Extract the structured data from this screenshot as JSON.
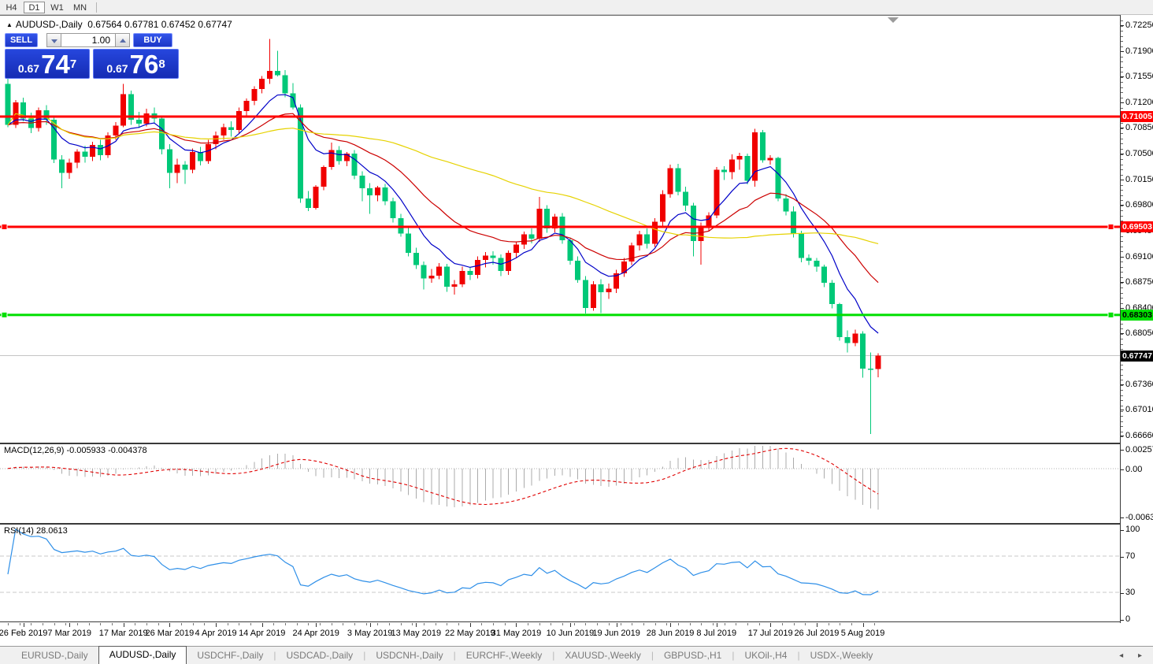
{
  "toolbar": {
    "timeframes": [
      {
        "label": "H4",
        "active": false
      },
      {
        "label": "D1",
        "active": true
      },
      {
        "label": "W1",
        "active": false
      },
      {
        "label": "MN",
        "active": false
      }
    ]
  },
  "chart": {
    "symbol_period": "AUDUSD-,Daily",
    "ohlc": "0.67564 0.67781 0.67452 0.67747",
    "collapse_icon": "▲"
  },
  "one_click": {
    "sell_label": "SELL",
    "buy_label": "BUY",
    "volume": "1.00",
    "sell_price": {
      "prefix": "0.67",
      "big": "74",
      "sup": "7"
    },
    "buy_price": {
      "prefix": "0.67",
      "big": "76",
      "sup": "8"
    }
  },
  "price_axis": {
    "labels": [
      "0.72250",
      "0.71900",
      "0.71550",
      "0.71200",
      "0.70850",
      "0.70500",
      "0.70150",
      "0.69800",
      "0.69450",
      "0.69100",
      "0.68750",
      "0.68400",
      "0.68050",
      "0.67710",
      "0.67360",
      "0.67010",
      "0.66660"
    ]
  },
  "levels": [
    {
      "price": 0.71005,
      "label": "0.71005",
      "type": "resistance",
      "color": "#FF0000",
      "text_color": "#FFFFFF",
      "handles": false
    },
    {
      "price": 0.69503,
      "label": "0.69503",
      "type": "resistance",
      "color": "#FF0000",
      "text_color": "#FFFFFF",
      "handles": true
    },
    {
      "price": 0.68303,
      "label": "0.68303",
      "type": "support",
      "color": "#00DF00",
      "text_color": "#000000",
      "handles": true
    }
  ],
  "current_price": {
    "value": 0.67747,
    "label": "0.67747",
    "tag_bg": "#000000",
    "tag_text": "#FFFFFF"
  },
  "indicators": {
    "macd": {
      "label": "MACD(12,26,9) -0.005933 -0.004378",
      "main_value": "-0.005933",
      "signal_value": "-0.004378",
      "axis_labels": [
        "0.002574",
        "0.00",
        "-0.006338"
      ],
      "fast": 12,
      "slow": 26,
      "signal": 9,
      "bar_color": "#ABABAB",
      "signal_color": "#E00000"
    },
    "rsi": {
      "label": "RSI(14) 28.0613",
      "value": "28.0613",
      "axis_labels": [
        "100",
        "70",
        "30",
        "0"
      ],
      "period": 14,
      "levels": [
        70,
        30
      ],
      "line_color": "#2E8FE8"
    }
  },
  "date_axis": {
    "ticks": [
      {
        "label": "26 Feb 2019",
        "i": 2
      },
      {
        "label": "7 Mar 2019",
        "i": 8
      },
      {
        "label": "17 Mar 2019",
        "i": 15
      },
      {
        "label": "26 Mar 2019",
        "i": 21
      },
      {
        "label": "4 Apr 2019",
        "i": 27
      },
      {
        "label": "14 Apr 2019",
        "i": 33
      },
      {
        "label": "24 Apr 2019",
        "i": 40
      },
      {
        "label": "3 May 2019",
        "i": 47
      },
      {
        "label": "13 May 2019",
        "i": 53
      },
      {
        "label": "22 May 2019",
        "i": 60
      },
      {
        "label": "31 May 2019",
        "i": 66
      },
      {
        "label": "10 Jun 2019",
        "i": 73
      },
      {
        "label": "19 Jun 2019",
        "i": 79
      },
      {
        "label": "28 Jun 2019",
        "i": 86
      },
      {
        "label": "8 Jul 2019",
        "i": 92
      },
      {
        "label": "17 Jul 2019",
        "i": 99
      },
      {
        "label": "26 Jul 2019",
        "i": 105
      },
      {
        "label": "5 Aug 2019",
        "i": 111
      }
    ]
  },
  "tabs": [
    {
      "label": "EURUSD-,Daily",
      "active": false
    },
    {
      "label": "AUDUSD-,Daily",
      "active": true
    },
    {
      "label": "USDCHF-,Daily",
      "active": false
    },
    {
      "label": "USDCAD-,Daily",
      "active": false
    },
    {
      "label": "USDCNH-,Daily",
      "active": false
    },
    {
      "label": "EURCHF-,Weekly",
      "active": false
    },
    {
      "label": "XAUUSD-,Weekly",
      "active": false
    },
    {
      "label": "GBPUSD-,H1",
      "active": false
    },
    {
      "label": "UKOil-,H4",
      "active": false
    },
    {
      "label": "USDX-,Weekly",
      "active": false
    }
  ],
  "tab_scroll": {
    "left_icon": "◂",
    "right_icon": "▸"
  },
  "chart_data": {
    "type": "candlestick",
    "symbol": "AUDUSD-",
    "timeframe": "Daily",
    "bull_color": "#F00000",
    "bear_color": "#00C878",
    "price_line_color": "#C4C4C4",
    "moving_averages": [
      {
        "kind": "ema",
        "period": 8,
        "color": "#0000C8"
      },
      {
        "kind": "ema",
        "period": 21,
        "color": "#CC0000"
      },
      {
        "kind": "sma",
        "period": 50,
        "color": "#E6D200"
      }
    ],
    "candles": [
      [
        0.7145,
        0.7157,
        0.7086,
        0.7089
      ],
      [
        0.7089,
        0.7123,
        0.7085,
        0.712
      ],
      [
        0.712,
        0.7126,
        0.7094,
        0.7098
      ],
      [
        0.7098,
        0.7106,
        0.7078,
        0.7085
      ],
      [
        0.7085,
        0.7113,
        0.708,
        0.7109
      ],
      [
        0.7109,
        0.7116,
        0.7089,
        0.7096
      ],
      [
        0.7096,
        0.7099,
        0.7037,
        0.7042
      ],
      [
        0.7042,
        0.7048,
        0.7003,
        0.7024
      ],
      [
        0.7024,
        0.7043,
        0.7016,
        0.7038
      ],
      [
        0.7038,
        0.7056,
        0.703,
        0.7053
      ],
      [
        0.7053,
        0.7061,
        0.7038,
        0.7046
      ],
      [
        0.7046,
        0.7066,
        0.704,
        0.7062
      ],
      [
        0.7062,
        0.7069,
        0.7041,
        0.7048
      ],
      [
        0.7048,
        0.7079,
        0.7044,
        0.7075
      ],
      [
        0.7075,
        0.7093,
        0.7069,
        0.7088
      ],
      [
        0.7088,
        0.7145,
        0.7086,
        0.7131
      ],
      [
        0.7131,
        0.7136,
        0.7089,
        0.7096
      ],
      [
        0.7096,
        0.7107,
        0.7085,
        0.7091
      ],
      [
        0.7091,
        0.7111,
        0.7087,
        0.7105
      ],
      [
        0.7105,
        0.7113,
        0.7092,
        0.7098
      ],
      [
        0.7098,
        0.7102,
        0.7049,
        0.7056
      ],
      [
        0.7056,
        0.7063,
        0.7003,
        0.7024
      ],
      [
        0.7024,
        0.7043,
        0.701,
        0.7035
      ],
      [
        0.7035,
        0.704,
        0.7009,
        0.7028
      ],
      [
        0.7028,
        0.7057,
        0.7023,
        0.7052
      ],
      [
        0.7052,
        0.7059,
        0.7034,
        0.704
      ],
      [
        0.704,
        0.7069,
        0.7036,
        0.7063
      ],
      [
        0.7063,
        0.708,
        0.7056,
        0.7075
      ],
      [
        0.7075,
        0.7091,
        0.7069,
        0.7086
      ],
      [
        0.7086,
        0.7094,
        0.7073,
        0.7082
      ],
      [
        0.7082,
        0.7113,
        0.7077,
        0.7108
      ],
      [
        0.7108,
        0.7125,
        0.7102,
        0.7122
      ],
      [
        0.7122,
        0.7142,
        0.7116,
        0.7138
      ],
      [
        0.7138,
        0.7156,
        0.7132,
        0.7152
      ],
      [
        0.7152,
        0.7206,
        0.7145,
        0.7163
      ],
      [
        0.7163,
        0.719,
        0.7155,
        0.7157
      ],
      [
        0.7157,
        0.7164,
        0.7127,
        0.7132
      ],
      [
        0.7132,
        0.7146,
        0.711,
        0.7113
      ],
      [
        0.7113,
        0.7117,
        0.6983,
        0.6989
      ],
      [
        0.6989,
        0.6999,
        0.6972,
        0.6976
      ],
      [
        0.6976,
        0.7007,
        0.6974,
        0.7005
      ],
      [
        0.7005,
        0.7034,
        0.7,
        0.7032
      ],
      [
        0.7032,
        0.7065,
        0.7028,
        0.7055
      ],
      [
        0.7055,
        0.706,
        0.7035,
        0.704
      ],
      [
        0.704,
        0.7052,
        0.7033,
        0.705
      ],
      [
        0.705,
        0.7055,
        0.7015,
        0.702
      ],
      [
        0.702,
        0.7026,
        0.6985,
        0.7003
      ],
      [
        0.7003,
        0.701,
        0.6968,
        0.6993
      ],
      [
        0.6993,
        0.7006,
        0.6985,
        0.7004
      ],
      [
        0.7004,
        0.7009,
        0.698,
        0.6985
      ],
      [
        0.6985,
        0.699,
        0.6956,
        0.6962
      ],
      [
        0.6962,
        0.6968,
        0.6937,
        0.6941
      ],
      [
        0.6941,
        0.695,
        0.691,
        0.6915
      ],
      [
        0.6915,
        0.6922,
        0.6893,
        0.6898
      ],
      [
        0.6898,
        0.6903,
        0.6865,
        0.688
      ],
      [
        0.688,
        0.6893,
        0.6874,
        0.6884
      ],
      [
        0.6884,
        0.6901,
        0.6879,
        0.6896
      ],
      [
        0.6896,
        0.69,
        0.6862,
        0.6869
      ],
      [
        0.6869,
        0.6878,
        0.6858,
        0.6872
      ],
      [
        0.6872,
        0.6896,
        0.6868,
        0.689
      ],
      [
        0.689,
        0.6895,
        0.6878,
        0.6885
      ],
      [
        0.6885,
        0.691,
        0.688,
        0.6905
      ],
      [
        0.6905,
        0.6916,
        0.6895,
        0.6911
      ],
      [
        0.6911,
        0.6917,
        0.6899,
        0.6908
      ],
      [
        0.6908,
        0.6913,
        0.6883,
        0.689
      ],
      [
        0.689,
        0.6918,
        0.6885,
        0.6915
      ],
      [
        0.6915,
        0.693,
        0.6908,
        0.6926
      ],
      [
        0.6926,
        0.6944,
        0.692,
        0.694
      ],
      [
        0.694,
        0.6948,
        0.6928,
        0.6934
      ],
      [
        0.6934,
        0.6991,
        0.693,
        0.6975
      ],
      [
        0.6975,
        0.698,
        0.6942,
        0.6948
      ],
      [
        0.6948,
        0.6968,
        0.6943,
        0.6964
      ],
      [
        0.6964,
        0.6969,
        0.6927,
        0.6932
      ],
      [
        0.6932,
        0.6936,
        0.6899,
        0.6904
      ],
      [
        0.6904,
        0.691,
        0.6874,
        0.6878
      ],
      [
        0.6878,
        0.6883,
        0.6832,
        0.684
      ],
      [
        0.684,
        0.6876,
        0.6836,
        0.6872
      ],
      [
        0.6872,
        0.6879,
        0.6833,
        0.6861
      ],
      [
        0.6861,
        0.6873,
        0.6852,
        0.6866
      ],
      [
        0.6866,
        0.6892,
        0.686,
        0.6887
      ],
      [
        0.6887,
        0.6908,
        0.6882,
        0.6903
      ],
      [
        0.6903,
        0.6929,
        0.6898,
        0.6925
      ],
      [
        0.6925,
        0.6945,
        0.6918,
        0.694
      ],
      [
        0.694,
        0.6948,
        0.6921,
        0.6927
      ],
      [
        0.6927,
        0.6962,
        0.6923,
        0.6957
      ],
      [
        0.6957,
        0.7,
        0.6952,
        0.6995
      ],
      [
        0.6995,
        0.7035,
        0.699,
        0.703
      ],
      [
        0.703,
        0.7036,
        0.6993,
        0.6998
      ],
      [
        0.6998,
        0.7005,
        0.6972,
        0.6979
      ],
      [
        0.6979,
        0.6983,
        0.691,
        0.6931
      ],
      [
        0.6931,
        0.6956,
        0.6899,
        0.6952
      ],
      [
        0.6952,
        0.697,
        0.6944,
        0.6966
      ],
      [
        0.6966,
        0.7032,
        0.6962,
        0.7028
      ],
      [
        0.7028,
        0.7033,
        0.7014,
        0.7025
      ],
      [
        0.7025,
        0.7049,
        0.7015,
        0.7042
      ],
      [
        0.7042,
        0.7051,
        0.7028,
        0.7047
      ],
      [
        0.7047,
        0.705,
        0.7008,
        0.7013
      ],
      [
        0.7013,
        0.7084,
        0.7005,
        0.7079
      ],
      [
        0.7079,
        0.7082,
        0.7038,
        0.7041
      ],
      [
        0.7041,
        0.7048,
        0.7035,
        0.7044
      ],
      [
        0.7044,
        0.7046,
        0.6985,
        0.6989
      ],
      [
        0.6989,
        0.6995,
        0.6966,
        0.6971
      ],
      [
        0.6971,
        0.6978,
        0.6936,
        0.6941
      ],
      [
        0.6941,
        0.6945,
        0.6902,
        0.6908
      ],
      [
        0.6908,
        0.6913,
        0.6898,
        0.6904
      ],
      [
        0.6904,
        0.6908,
        0.6889,
        0.6896
      ],
      [
        0.6896,
        0.6899,
        0.6868,
        0.6874
      ],
      [
        0.6874,
        0.6878,
        0.6839,
        0.6845
      ],
      [
        0.6845,
        0.6847,
        0.6795,
        0.68
      ],
      [
        0.68,
        0.6809,
        0.6779,
        0.6792
      ],
      [
        0.6792,
        0.681,
        0.6788,
        0.6805
      ],
      [
        0.6805,
        0.6808,
        0.6745,
        0.6757
      ],
      [
        0.6757,
        0.6779,
        0.6668,
        0.6756
      ],
      [
        0.67564,
        0.67781,
        0.67452,
        0.67747
      ]
    ]
  }
}
